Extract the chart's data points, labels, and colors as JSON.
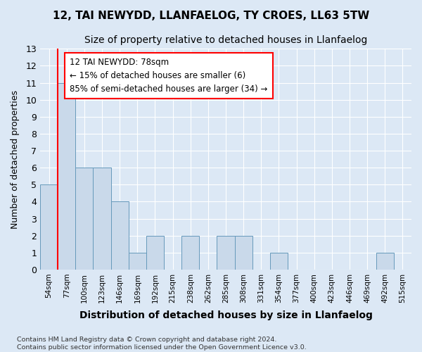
{
  "title1": "12, TAI NEWYDD, LLANFAELOG, TY CROES, LL63 5TW",
  "title2": "Size of property relative to detached houses in Llanfaelog",
  "xlabel": "Distribution of detached houses by size in Llanfaelog",
  "ylabel": "Number of detached properties",
  "categories": [
    "54sqm",
    "77sqm",
    "100sqm",
    "123sqm",
    "146sqm",
    "169sqm",
    "192sqm",
    "215sqm",
    "238sqm",
    "262sqm",
    "285sqm",
    "308sqm",
    "331sqm",
    "354sqm",
    "377sqm",
    "400sqm",
    "423sqm",
    "446sqm",
    "469sqm",
    "492sqm",
    "515sqm"
  ],
  "values": [
    5,
    11,
    6,
    6,
    4,
    1,
    2,
    0,
    2,
    0,
    2,
    2,
    0,
    1,
    0,
    0,
    0,
    0,
    0,
    1,
    0
  ],
  "bar_color": "#c9d9ea",
  "bar_edge_color": "#6699bb",
  "annotation_text": "12 TAI NEWYDD: 78sqm\n← 15% of detached houses are smaller (6)\n85% of semi-detached houses are larger (34) →",
  "annotation_box_color": "white",
  "annotation_box_edge": "red",
  "vline_color": "red",
  "ylim": [
    0,
    13
  ],
  "yticks": [
    0,
    1,
    2,
    3,
    4,
    5,
    6,
    7,
    8,
    9,
    10,
    11,
    12,
    13
  ],
  "footer": "Contains HM Land Registry data © Crown copyright and database right 2024.\nContains public sector information licensed under the Open Government Licence v3.0.",
  "background_color": "#dce8f5",
  "plot_bg_color": "#dce8f5",
  "grid_color": "#ffffff",
  "title1_fontsize": 11,
  "title2_fontsize": 10,
  "xlabel_fontsize": 10,
  "ylabel_fontsize": 9
}
